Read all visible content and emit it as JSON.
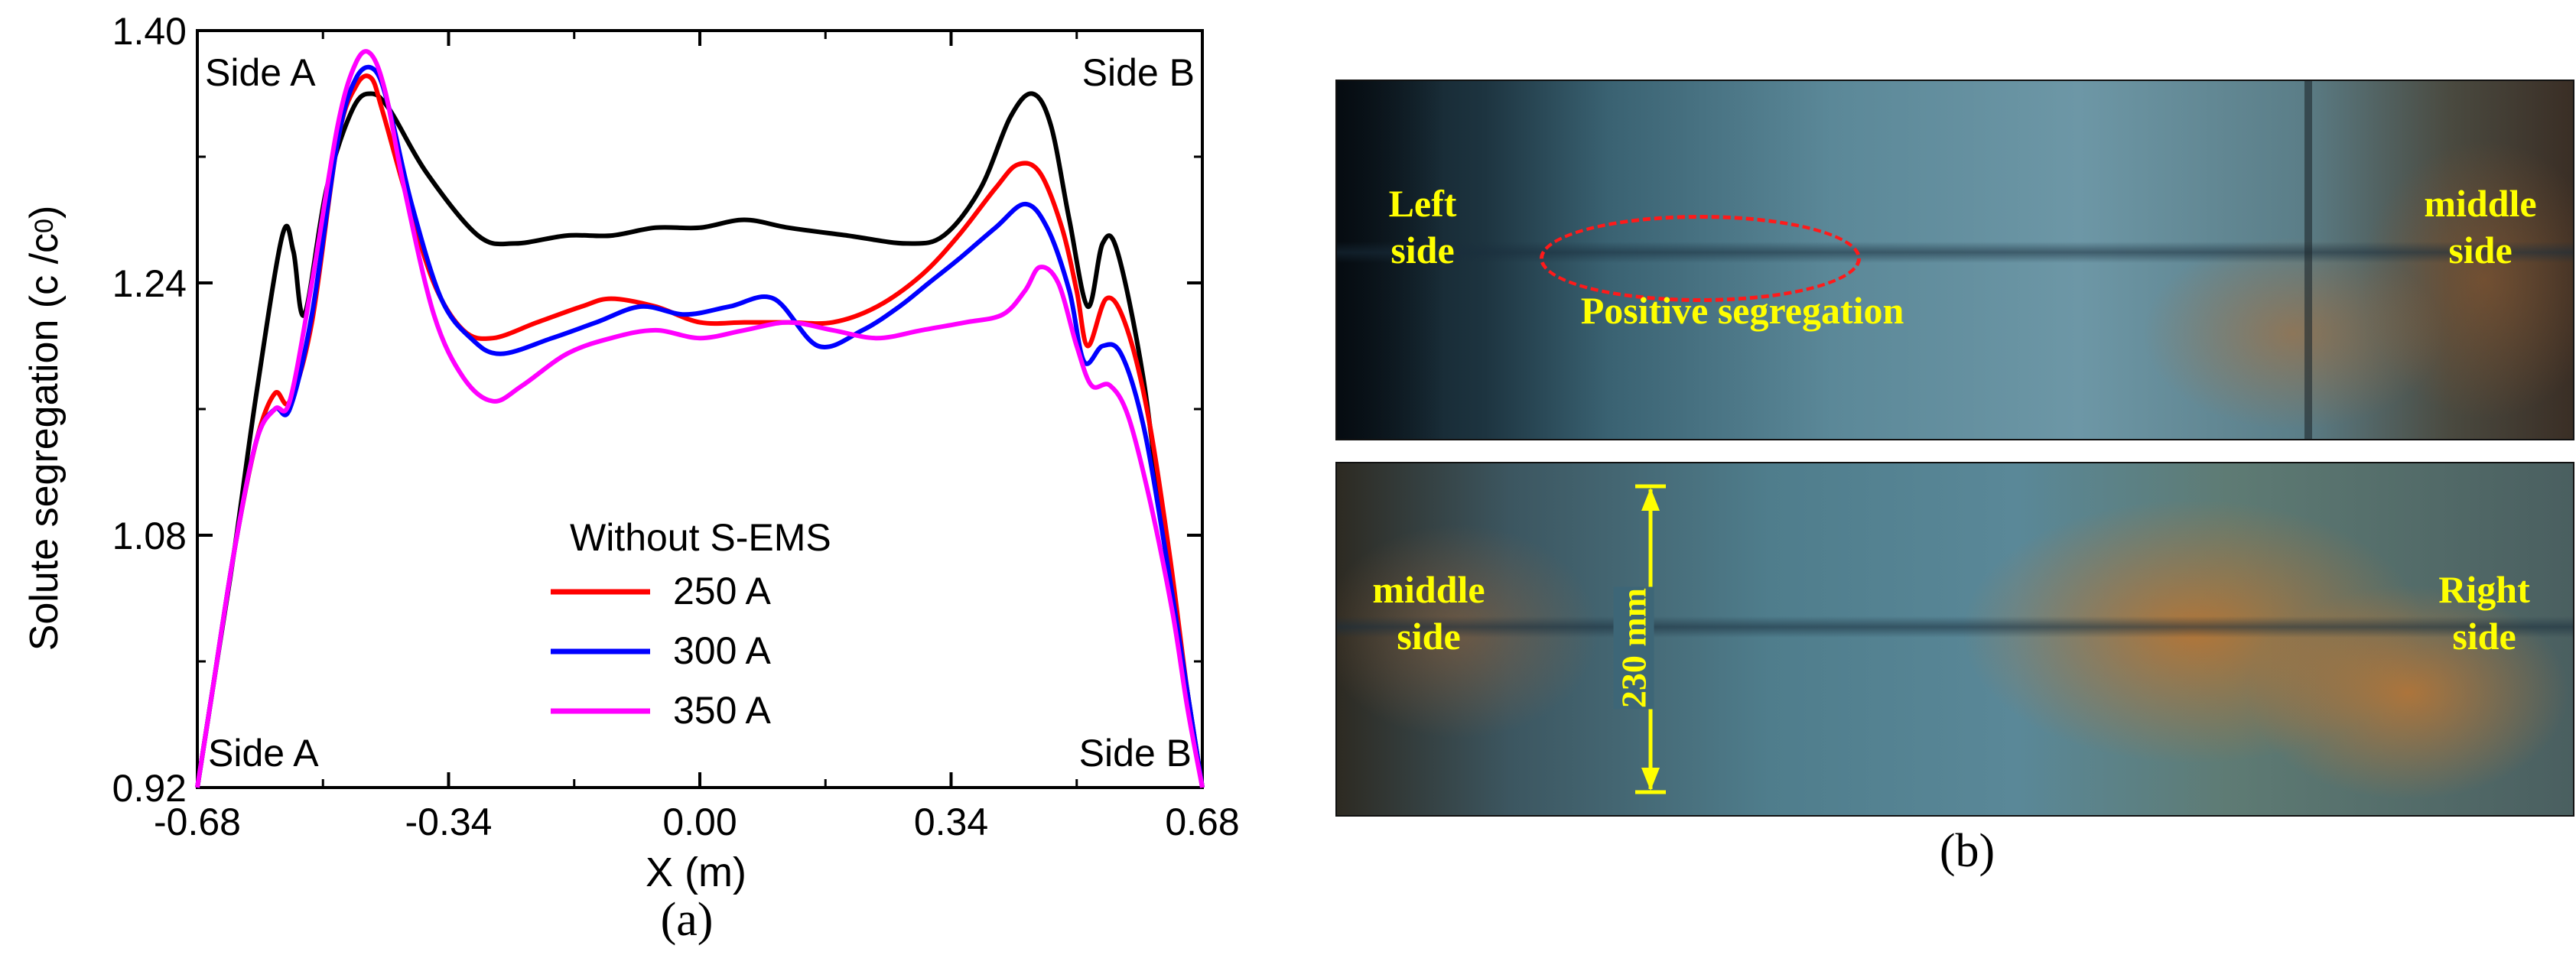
{
  "chart_data": {
    "type": "line",
    "xlabel": "X  (m)",
    "ylabel": "Solute segregation (c /c",
    "ylabel_sub": "0",
    "ylabel_close": ")",
    "xlim": [
      -0.68,
      0.68
    ],
    "ylim": [
      0.92,
      1.4
    ],
    "x_ticks": [
      -0.68,
      -0.34,
      0.0,
      0.34,
      0.68
    ],
    "x_tick_labels": [
      "-0.68",
      "-0.34",
      "0.00",
      "0.34",
      "0.68"
    ],
    "y_ticks": [
      0.92,
      1.08,
      1.24,
      1.4
    ],
    "y_tick_labels": [
      "0.92",
      "1.08",
      "1.24",
      "1.40"
    ],
    "annotations": [
      "Side A",
      "Side B",
      "Side A",
      "Side B"
    ],
    "legend_title": "Without S-EMS",
    "legend_position": "bottom-center",
    "series": [
      {
        "name": "Without S-EMS",
        "color": "#000000",
        "points": [
          [
            -0.68,
            0.92
          ],
          [
            -0.66,
            0.98
          ],
          [
            -0.63,
            1.07
          ],
          [
            -0.6,
            1.17
          ],
          [
            -0.565,
            1.27
          ],
          [
            -0.55,
            1.26
          ],
          [
            -0.535,
            1.22
          ],
          [
            -0.505,
            1.3
          ],
          [
            -0.47,
            1.35
          ],
          [
            -0.445,
            1.36
          ],
          [
            -0.42,
            1.35
          ],
          [
            -0.37,
            1.31
          ],
          [
            -0.3,
            1.27
          ],
          [
            -0.25,
            1.265
          ],
          [
            -0.18,
            1.27
          ],
          [
            -0.12,
            1.27
          ],
          [
            -0.06,
            1.275
          ],
          [
            0.0,
            1.275
          ],
          [
            0.06,
            1.28
          ],
          [
            0.12,
            1.275
          ],
          [
            0.2,
            1.27
          ],
          [
            0.28,
            1.265
          ],
          [
            0.33,
            1.27
          ],
          [
            0.38,
            1.3
          ],
          [
            0.42,
            1.345
          ],
          [
            0.45,
            1.36
          ],
          [
            0.475,
            1.34
          ],
          [
            0.5,
            1.28
          ],
          [
            0.525,
            1.225
          ],
          [
            0.545,
            1.265
          ],
          [
            0.565,
            1.26
          ],
          [
            0.6,
            1.18
          ],
          [
            0.63,
            1.07
          ],
          [
            0.66,
            0.98
          ],
          [
            0.68,
            0.92
          ]
        ]
      },
      {
        "name": "250 A",
        "color": "#ff0000",
        "points": [
          [
            -0.68,
            0.92
          ],
          [
            -0.66,
            0.98
          ],
          [
            -0.63,
            1.07
          ],
          [
            -0.6,
            1.14
          ],
          [
            -0.575,
            1.17
          ],
          [
            -0.555,
            1.165
          ],
          [
            -0.525,
            1.215
          ],
          [
            -0.49,
            1.33
          ],
          [
            -0.465,
            1.365
          ],
          [
            -0.445,
            1.37
          ],
          [
            -0.43,
            1.35
          ],
          [
            -0.4,
            1.3
          ],
          [
            -0.36,
            1.24
          ],
          [
            -0.32,
            1.21
          ],
          [
            -0.28,
            1.205
          ],
          [
            -0.22,
            1.215
          ],
          [
            -0.16,
            1.225
          ],
          [
            -0.12,
            1.23
          ],
          [
            -0.06,
            1.225
          ],
          [
            0.0,
            1.215
          ],
          [
            0.06,
            1.215
          ],
          [
            0.12,
            1.215
          ],
          [
            0.18,
            1.215
          ],
          [
            0.24,
            1.225
          ],
          [
            0.3,
            1.245
          ],
          [
            0.35,
            1.27
          ],
          [
            0.4,
            1.3
          ],
          [
            0.43,
            1.315
          ],
          [
            0.46,
            1.31
          ],
          [
            0.49,
            1.275
          ],
          [
            0.51,
            1.235
          ],
          [
            0.525,
            1.2
          ],
          [
            0.55,
            1.23
          ],
          [
            0.575,
            1.215
          ],
          [
            0.605,
            1.16
          ],
          [
            0.635,
            1.07
          ],
          [
            0.66,
            0.98
          ],
          [
            0.68,
            0.92
          ]
        ]
      },
      {
        "name": "300 A",
        "color": "#0000ff",
        "points": [
          [
            -0.68,
            0.92
          ],
          [
            -0.66,
            0.98
          ],
          [
            -0.63,
            1.07
          ],
          [
            -0.6,
            1.14
          ],
          [
            -0.575,
            1.16
          ],
          [
            -0.555,
            1.16
          ],
          [
            -0.525,
            1.22
          ],
          [
            -0.49,
            1.33
          ],
          [
            -0.465,
            1.37
          ],
          [
            -0.44,
            1.375
          ],
          [
            -0.42,
            1.35
          ],
          [
            -0.39,
            1.29
          ],
          [
            -0.35,
            1.23
          ],
          [
            -0.31,
            1.205
          ],
          [
            -0.27,
            1.195
          ],
          [
            -0.2,
            1.205
          ],
          [
            -0.14,
            1.215
          ],
          [
            -0.08,
            1.225
          ],
          [
            -0.02,
            1.22
          ],
          [
            0.04,
            1.225
          ],
          [
            0.1,
            1.23
          ],
          [
            0.16,
            1.2
          ],
          [
            0.22,
            1.21
          ],
          [
            0.27,
            1.225
          ],
          [
            0.31,
            1.24
          ],
          [
            0.35,
            1.255
          ],
          [
            0.4,
            1.275
          ],
          [
            0.44,
            1.29
          ],
          [
            0.47,
            1.275
          ],
          [
            0.5,
            1.235
          ],
          [
            0.52,
            1.19
          ],
          [
            0.545,
            1.2
          ],
          [
            0.57,
            1.195
          ],
          [
            0.6,
            1.15
          ],
          [
            0.63,
            1.07
          ],
          [
            0.66,
            0.98
          ],
          [
            0.68,
            0.92
          ]
        ]
      },
      {
        "name": "350 A",
        "color": "#ff00ff",
        "points": [
          [
            -0.68,
            0.92
          ],
          [
            -0.66,
            0.98
          ],
          [
            -0.63,
            1.07
          ],
          [
            -0.6,
            1.14
          ],
          [
            -0.575,
            1.16
          ],
          [
            -0.555,
            1.165
          ],
          [
            -0.525,
            1.24
          ],
          [
            -0.49,
            1.34
          ],
          [
            -0.465,
            1.38
          ],
          [
            -0.445,
            1.385
          ],
          [
            -0.425,
            1.36
          ],
          [
            -0.4,
            1.3
          ],
          [
            -0.36,
            1.22
          ],
          [
            -0.32,
            1.18
          ],
          [
            -0.28,
            1.165
          ],
          [
            -0.24,
            1.175
          ],
          [
            -0.18,
            1.195
          ],
          [
            -0.12,
            1.205
          ],
          [
            -0.06,
            1.21
          ],
          [
            0.0,
            1.205
          ],
          [
            0.06,
            1.21
          ],
          [
            0.12,
            1.215
          ],
          [
            0.18,
            1.21
          ],
          [
            0.24,
            1.205
          ],
          [
            0.3,
            1.21
          ],
          [
            0.36,
            1.215
          ],
          [
            0.41,
            1.22
          ],
          [
            0.44,
            1.235
          ],
          [
            0.46,
            1.25
          ],
          [
            0.485,
            1.24
          ],
          [
            0.51,
            1.2
          ],
          [
            0.53,
            1.175
          ],
          [
            0.555,
            1.175
          ],
          [
            0.58,
            1.155
          ],
          [
            0.61,
            1.1
          ],
          [
            0.64,
            1.03
          ],
          [
            0.66,
            0.97
          ],
          [
            0.68,
            0.92
          ]
        ]
      }
    ]
  },
  "captions": {
    "a": "(a)",
    "b": "(b)"
  },
  "photos": {
    "top": {
      "left_label": "Left\nside",
      "right_label": "middle\nside",
      "annotation": "Positive segregation"
    },
    "bottom": {
      "left_label": "middle\nside",
      "right_label": "Right\nside",
      "dimension": "230 mm"
    }
  }
}
